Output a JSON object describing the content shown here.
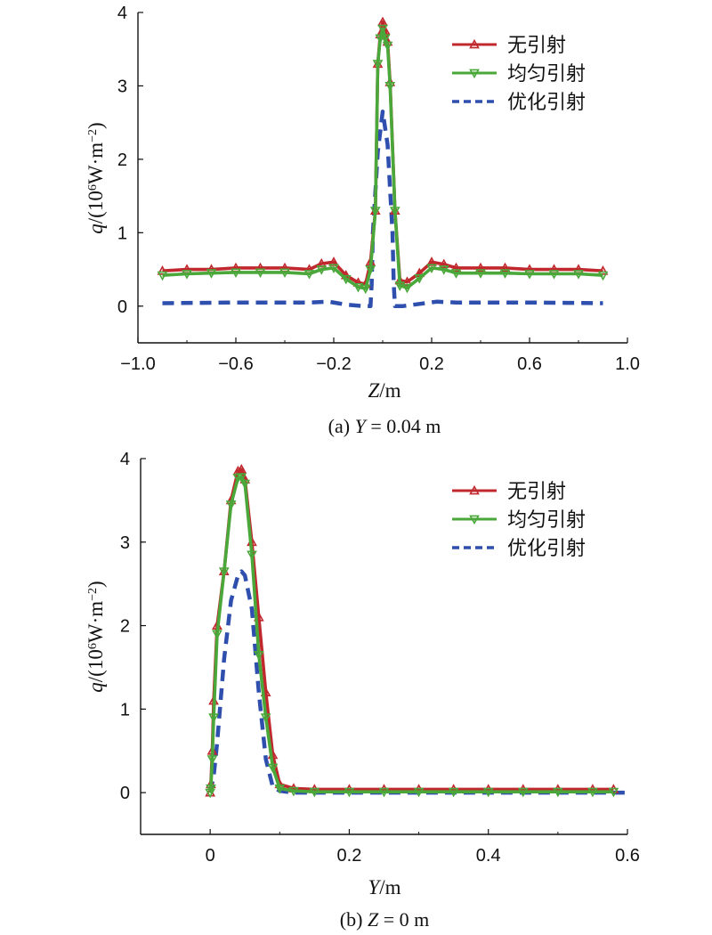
{
  "chart_data": [
    {
      "type": "line",
      "caption": "(a) Y = 0.04 m",
      "caption_prefix": "(a)",
      "caption_var": "Y",
      "caption_rest": "= 0.04 m",
      "xlabel_var": "Z",
      "xlabel_unit": "/m",
      "ylabel_var": "q",
      "ylabel_a": "/(10",
      "ylabel_exp": "6",
      "ylabel_b": "W·m",
      "ylabel_exp2": "−2",
      "ylabel_c": ")",
      "xlim": [
        -1.0,
        1.0
      ],
      "ylim": [
        -0.5,
        4.0
      ],
      "xticks": [
        -1.0,
        -0.6,
        -0.2,
        0.2,
        0.6,
        1.0
      ],
      "xtick_labels": [
        "−1.0",
        "−0.6",
        "−0.2",
        "0.2",
        "0.6",
        "1.0"
      ],
      "yticks": [
        0,
        1,
        2,
        3,
        4
      ],
      "ytick_labels": [
        "0",
        "1",
        "2",
        "3",
        "4"
      ],
      "legend_position": "top-right",
      "series": [
        {
          "name": "无引射",
          "color": "#c0282d",
          "style": "solid",
          "marker": "triangle-up",
          "x": [
            -0.9,
            -0.8,
            -0.7,
            -0.6,
            -0.5,
            -0.4,
            -0.3,
            -0.25,
            -0.2,
            -0.15,
            -0.1,
            -0.07,
            -0.05,
            -0.03,
            -0.02,
            -0.01,
            0.0,
            0.01,
            0.02,
            0.03,
            0.05,
            0.07,
            0.1,
            0.15,
            0.2,
            0.25,
            0.3,
            0.4,
            0.5,
            0.6,
            0.7,
            0.8,
            0.9
          ],
          "y": [
            0.48,
            0.5,
            0.5,
            0.52,
            0.52,
            0.52,
            0.5,
            0.58,
            0.6,
            0.42,
            0.32,
            0.3,
            0.6,
            1.3,
            3.3,
            3.7,
            3.87,
            3.75,
            3.6,
            3.05,
            1.3,
            0.35,
            0.33,
            0.45,
            0.6,
            0.57,
            0.52,
            0.52,
            0.52,
            0.5,
            0.5,
            0.5,
            0.48
          ]
        },
        {
          "name": "均匀引射",
          "color": "#4aa83a",
          "style": "solid",
          "marker": "triangle-down",
          "x": [
            -0.9,
            -0.8,
            -0.7,
            -0.6,
            -0.5,
            -0.4,
            -0.3,
            -0.25,
            -0.2,
            -0.15,
            -0.1,
            -0.07,
            -0.05,
            -0.03,
            -0.02,
            -0.01,
            0.0,
            0.01,
            0.02,
            0.03,
            0.05,
            0.07,
            0.1,
            0.15,
            0.2,
            0.25,
            0.3,
            0.4,
            0.5,
            0.6,
            0.7,
            0.8,
            0.9
          ],
          "y": [
            0.42,
            0.44,
            0.45,
            0.46,
            0.46,
            0.46,
            0.44,
            0.5,
            0.52,
            0.37,
            0.26,
            0.24,
            0.5,
            1.3,
            3.3,
            3.65,
            3.78,
            3.65,
            3.55,
            3.0,
            1.3,
            0.28,
            0.25,
            0.38,
            0.52,
            0.5,
            0.45,
            0.45,
            0.45,
            0.44,
            0.44,
            0.44,
            0.42
          ]
        },
        {
          "name": "优化引射",
          "color": "#2f4fae",
          "style": "dashed",
          "marker": "none",
          "x": [
            -0.9,
            -0.6,
            -0.3,
            -0.22,
            -0.15,
            -0.08,
            -0.05,
            -0.045,
            -0.04,
            -0.02,
            0.0,
            0.02,
            0.04,
            0.045,
            0.05,
            0.08,
            0.15,
            0.22,
            0.3,
            0.6,
            0.9
          ],
          "y": [
            0.04,
            0.05,
            0.05,
            0.06,
            0.02,
            0.0,
            0.0,
            0.3,
            1.0,
            2.1,
            2.65,
            2.2,
            1.0,
            0.3,
            0.0,
            0.0,
            0.03,
            0.06,
            0.05,
            0.05,
            0.04
          ]
        }
      ]
    },
    {
      "type": "line",
      "caption": "(b) Z = 0 m",
      "caption_prefix": "(b)",
      "caption_var": "Z",
      "caption_rest": "= 0 m",
      "xlabel_var": "Y",
      "xlabel_unit": "/m",
      "ylabel_var": "q",
      "ylabel_a": "/(10",
      "ylabel_exp": "6",
      "ylabel_b": "W·m",
      "ylabel_exp2": "−2",
      "ylabel_c": ")",
      "xlim": [
        -0.1,
        0.6
      ],
      "ylim": [
        -0.5,
        4.0
      ],
      "xticks": [
        0,
        0.2,
        0.4,
        0.6
      ],
      "xtick_labels": [
        "0",
        "0.2",
        "0.4",
        "0.6"
      ],
      "yticks": [
        0,
        1,
        2,
        3,
        4
      ],
      "ytick_labels": [
        "0",
        "1",
        "2",
        "3",
        "4"
      ],
      "legend_position": "top-right",
      "series": [
        {
          "name": "无引射",
          "color": "#c0282d",
          "style": "solid",
          "marker": "triangle-up",
          "x": [
            0.0,
            0.001,
            0.003,
            0.005,
            0.01,
            0.02,
            0.03,
            0.04,
            0.045,
            0.05,
            0.06,
            0.07,
            0.08,
            0.09,
            0.1,
            0.12,
            0.15,
            0.2,
            0.25,
            0.3,
            0.35,
            0.4,
            0.45,
            0.5,
            0.55,
            0.58
          ],
          "y": [
            0.0,
            0.1,
            0.5,
            1.1,
            2.0,
            2.65,
            3.5,
            3.85,
            3.87,
            3.75,
            3.0,
            2.1,
            1.2,
            0.45,
            0.1,
            0.05,
            0.04,
            0.04,
            0.04,
            0.04,
            0.04,
            0.04,
            0.04,
            0.04,
            0.04,
            0.04
          ]
        },
        {
          "name": "均匀引射",
          "color": "#4aa83a",
          "style": "solid",
          "marker": "triangle-down",
          "x": [
            0.0,
            0.001,
            0.003,
            0.005,
            0.01,
            0.02,
            0.03,
            0.04,
            0.045,
            0.05,
            0.06,
            0.07,
            0.08,
            0.09,
            0.1,
            0.12,
            0.15,
            0.2,
            0.25,
            0.3,
            0.35,
            0.4,
            0.45,
            0.5,
            0.55,
            0.58
          ],
          "y": [
            0.0,
            0.05,
            0.4,
            0.9,
            1.9,
            2.65,
            3.45,
            3.77,
            3.78,
            3.7,
            2.85,
            1.65,
            0.9,
            0.3,
            0.05,
            0.02,
            0.01,
            0.01,
            0.01,
            0.01,
            0.01,
            0.01,
            0.01,
            0.01,
            0.01,
            0.01
          ]
        },
        {
          "name": "优化引射",
          "color": "#2f4fae",
          "style": "dashed",
          "marker": "none",
          "x": [
            0.0,
            0.005,
            0.01,
            0.02,
            0.03,
            0.04,
            0.045,
            0.05,
            0.06,
            0.07,
            0.08,
            0.09,
            0.1,
            0.12,
            0.15,
            0.2,
            0.3,
            0.4,
            0.5,
            0.6
          ],
          "y": [
            0.0,
            0.2,
            0.6,
            1.6,
            2.3,
            2.6,
            2.65,
            2.6,
            2.2,
            1.2,
            0.4,
            0.07,
            0.02,
            0.0,
            0.0,
            0.0,
            0.0,
            0.0,
            0.0,
            0.0
          ]
        }
      ]
    }
  ]
}
